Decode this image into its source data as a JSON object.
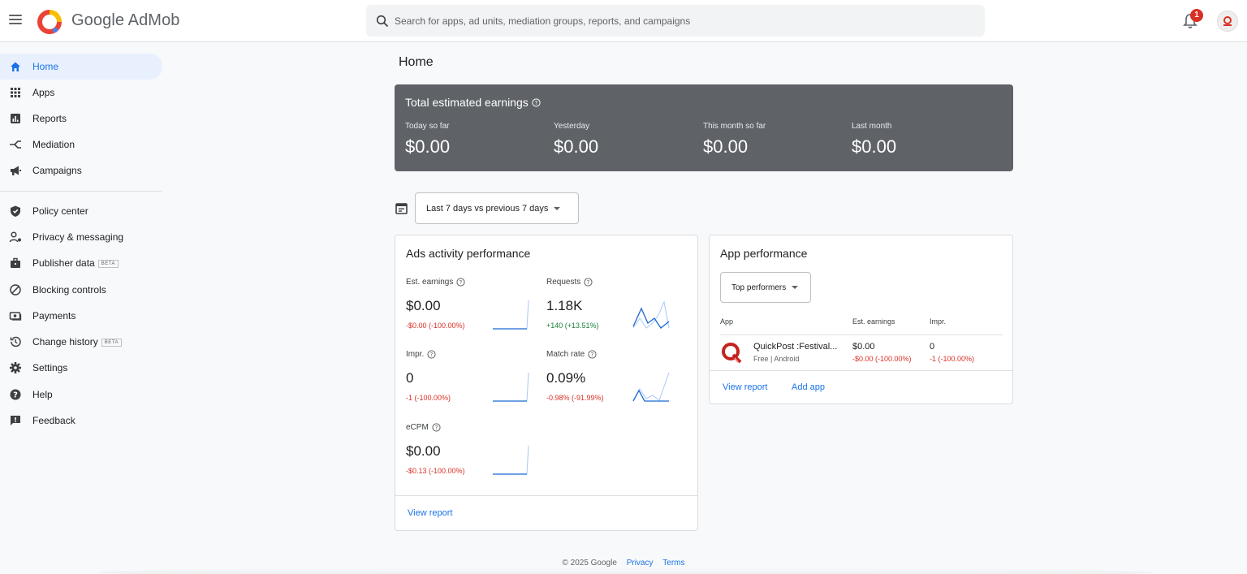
{
  "header": {
    "brand": "Google AdMob",
    "search_placeholder": "Search for apps, ad units, mediation groups, reports, and campaigns",
    "notification_count": "1"
  },
  "sidebar": {
    "items": [
      {
        "label": "Home",
        "icon": "home-icon"
      },
      {
        "label": "Apps",
        "icon": "apps-grid-icon"
      },
      {
        "label": "Reports",
        "icon": "reports-icon"
      },
      {
        "label": "Mediation",
        "icon": "mediation-icon"
      },
      {
        "label": "Campaigns",
        "icon": "megaphone-icon"
      },
      {
        "label": "Policy center",
        "icon": "shield-icon"
      },
      {
        "label": "Privacy & messaging",
        "icon": "person-settings-icon"
      },
      {
        "label": "Publisher data",
        "icon": "briefcase-icon",
        "badge": "BETA"
      },
      {
        "label": "Blocking controls",
        "icon": "block-icon"
      },
      {
        "label": "Payments",
        "icon": "payments-icon"
      },
      {
        "label": "Change history",
        "icon": "history-icon",
        "badge": "BETA"
      },
      {
        "label": "Settings",
        "icon": "gear-icon"
      },
      {
        "label": "Help",
        "icon": "help-icon"
      },
      {
        "label": "Feedback",
        "icon": "feedback-icon"
      }
    ]
  },
  "main": {
    "title": "Home",
    "earnings": {
      "title": "Total estimated earnings",
      "cols": [
        {
          "label": "Today so far",
          "value": "$0.00"
        },
        {
          "label": "Yesterday",
          "value": "$0.00"
        },
        {
          "label": "This month so far",
          "value": "$0.00"
        },
        {
          "label": "Last month",
          "value": "$0.00"
        }
      ]
    },
    "date_range": "Last 7 days vs previous 7 days",
    "ads_activity": {
      "title": "Ads activity performance",
      "metrics": [
        {
          "label": "Est. earnings",
          "value": "$0.00",
          "delta": "-$0.00 (-100.00%)"
        },
        {
          "label": "Requests",
          "value": "1.18K",
          "delta": "+140 (+13.51%)"
        },
        {
          "label": "Impr.",
          "value": "0",
          "delta": "-1 (-100.00%)"
        },
        {
          "label": "Match rate",
          "value": "0.09%",
          "delta": "-0.98% (-91.99%)"
        },
        {
          "label": "eCPM",
          "value": "$0.00",
          "delta": "-$0.13 (-100.00%)"
        }
      ],
      "view_report": "View report"
    },
    "app_performance": {
      "title": "App performance",
      "filter": "Top performers",
      "columns": [
        "App",
        "Est. earnings",
        "Impr."
      ],
      "rows": [
        {
          "name": "QuickPost :Festival...",
          "sub": "Free | Android",
          "earnings": "$0.00",
          "earnings_delta": "-$0.00 (-100.00%)",
          "impr": "0",
          "impr_delta": "-1 (-100.00%)"
        }
      ],
      "view_report": "View report",
      "add_app": "Add app"
    }
  },
  "footer": {
    "copyright": "© 2025 Google",
    "privacy": "Privacy",
    "terms": "Terms"
  },
  "colors": {
    "accent": "#1a73e8",
    "earnings_card": "#5f6368",
    "negative": "#d93025",
    "positive": "#188038"
  }
}
